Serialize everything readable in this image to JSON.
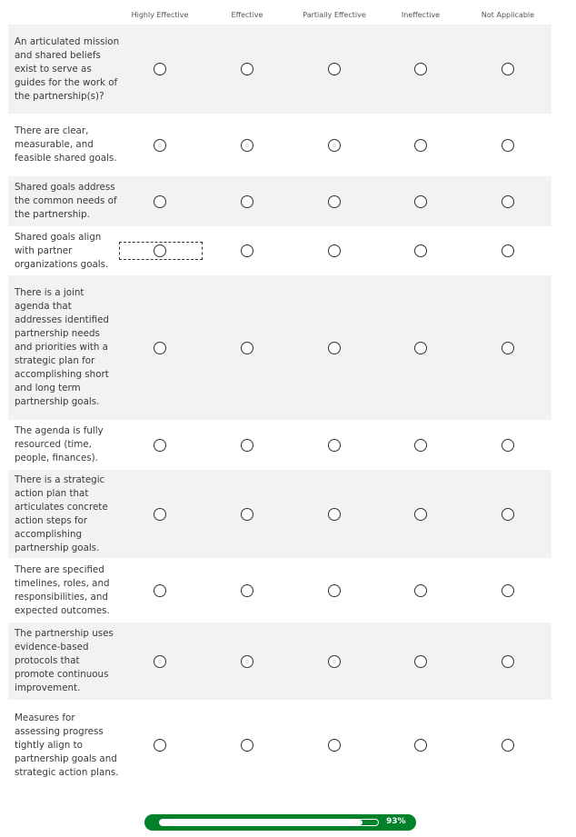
{
  "columns": [
    "Highly Effective",
    "Effective",
    "Partially Effective",
    "Ineffective",
    "Not Applicable"
  ],
  "rows": [
    {
      "label": "An articulated mission and shared beliefs exist to serve as guides for the work of the partnership(s)?"
    },
    {
      "label": "There are clear, measurable, and feasible shared goals."
    },
    {
      "label": "Shared goals address the common needs of the partnership."
    },
    {
      "label": "Shared goals align with partner organizations goals."
    },
    {
      "label": "There is a joint agenda that addresses identified partnership needs and priorities with a strategic plan for accomplishing short and long term partnership goals."
    },
    {
      "label": "The agenda is fully resourced (time, people, finances)."
    },
    {
      "label": "There is a strategic action plan that articulates concrete action steps for accomplishing partnership goals."
    },
    {
      "label": "There are specified timelines, roles, and responsibilities, and expected outcomes."
    },
    {
      "label": "The partnership uses evidence-based protocols that promote continuous improvement."
    },
    {
      "label": "Measures for assessing progress tightly align to partnership goals and strategic action plans."
    }
  ],
  "focused_row": 3,
  "progress": {
    "percent": 93,
    "label": "93%"
  },
  "colors": {
    "progress": "#00812a",
    "alt_row": "#f2f2f2"
  }
}
